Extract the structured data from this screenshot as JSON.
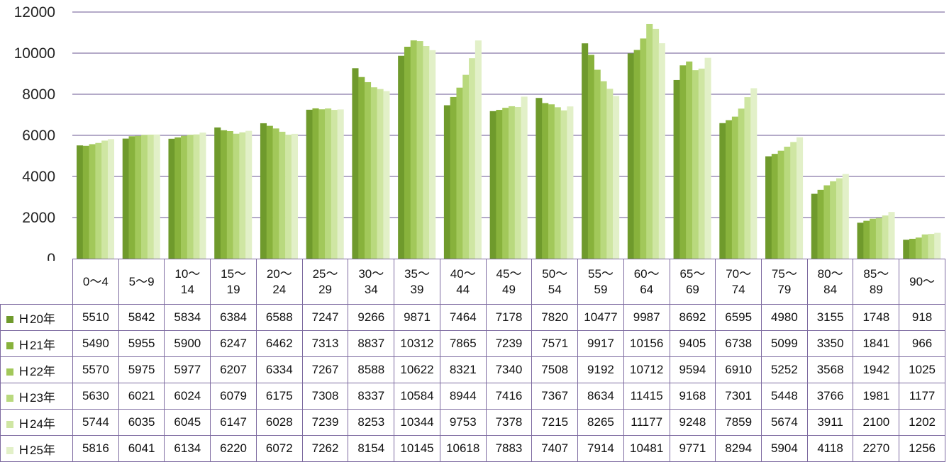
{
  "chart_data": {
    "type": "bar",
    "categories": [
      "0～4",
      "5～9",
      "10～\n14",
      "15～\n19",
      "20～\n24",
      "25～\n29",
      "30～\n34",
      "35～\n39",
      "40～\n44",
      "45～\n49",
      "50～\n54",
      "55～\n59",
      "60～\n64",
      "65～\n69",
      "70～\n74",
      "75～\n79",
      "80～\n84",
      "85～\n89",
      "90～"
    ],
    "ylim": [
      0,
      12000
    ],
    "yticks": [
      0,
      2000,
      4000,
      6000,
      8000,
      10000,
      12000
    ],
    "grid": true,
    "legend": "table",
    "series": [
      {
        "name": "Ｈ20年",
        "color": "#6f9a2c",
        "values": [
          5510,
          5842,
          5834,
          6384,
          6588,
          7247,
          9266,
          9871,
          7464,
          7178,
          7820,
          10477,
          9987,
          8692,
          6595,
          4980,
          3155,
          1748,
          918
        ]
      },
      {
        "name": "Ｈ21年",
        "color": "#88b23c",
        "values": [
          5490,
          5955,
          5900,
          6247,
          6462,
          7313,
          8837,
          10312,
          7865,
          7239,
          7571,
          9917,
          10156,
          9405,
          6738,
          5099,
          3350,
          1841,
          966
        ]
      },
      {
        "name": "Ｈ22年",
        "color": "#a2c85a",
        "values": [
          5570,
          5975,
          5977,
          6207,
          6334,
          7267,
          8588,
          10622,
          8321,
          7340,
          7508,
          9192,
          10712,
          9594,
          6910,
          5252,
          3568,
          1942,
          1025
        ]
      },
      {
        "name": "Ｈ23年",
        "color": "#b9d97e",
        "values": [
          5630,
          6021,
          6024,
          6079,
          6175,
          7308,
          8337,
          10584,
          8944,
          7416,
          7367,
          8634,
          11415,
          9168,
          7301,
          5448,
          3766,
          1981,
          1177
        ]
      },
      {
        "name": "Ｈ24年",
        "color": "#cfe6a3",
        "values": [
          5744,
          6035,
          6045,
          6147,
          6028,
          7239,
          8253,
          10344,
          9753,
          7378,
          7215,
          8265,
          11177,
          9248,
          7859,
          5674,
          3911,
          2100,
          1202
        ]
      },
      {
        "name": "Ｈ25年",
        "color": "#e2f0c8",
        "values": [
          5816,
          6041,
          6134,
          6220,
          6072,
          7262,
          8154,
          10145,
          10618,
          7883,
          7407,
          7914,
          10481,
          9771,
          8294,
          5904,
          4118,
          2270,
          1256
        ]
      }
    ]
  }
}
